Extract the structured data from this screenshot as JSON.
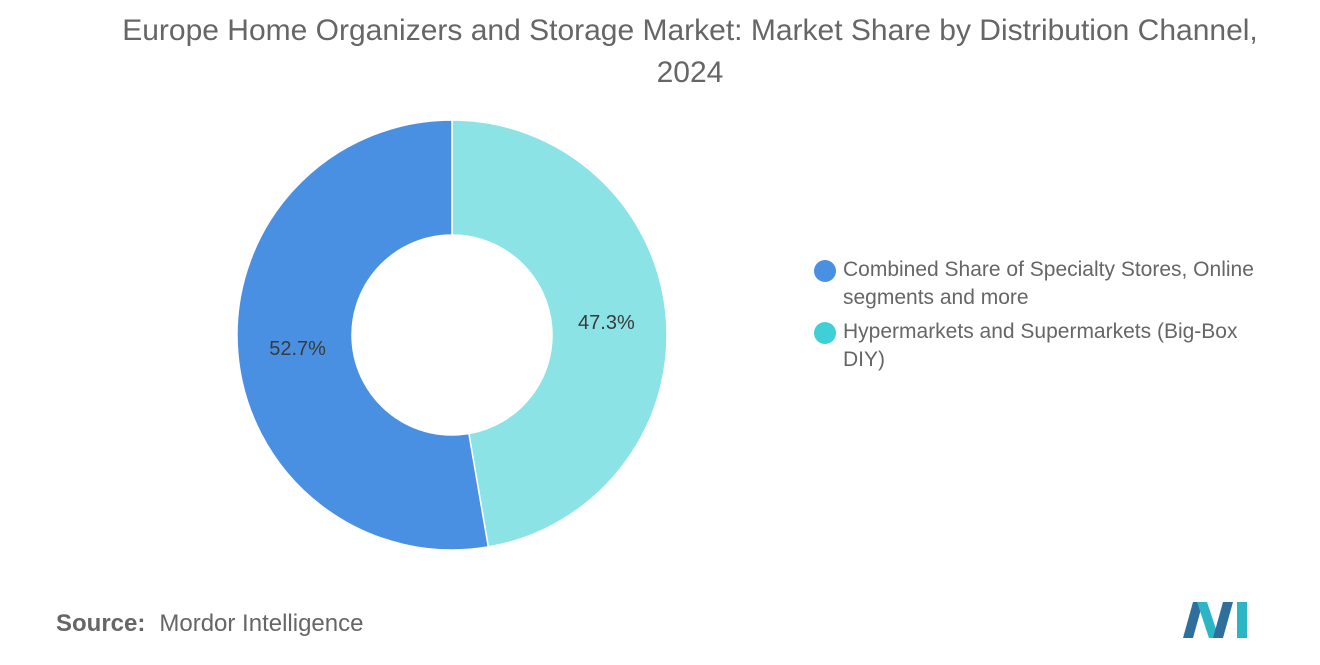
{
  "title": "Europe Home Organizers and Storage Market: Market Share by Distribution Channel, 2024",
  "chart_data": {
    "type": "pie",
    "donut": true,
    "title": "Europe Home Organizers and Storage Market: Market Share by Distribution Channel, 2024",
    "slices": [
      {
        "name": "Hypermarkets and Supermarkets (Big-Box DIY)",
        "value": 47.3,
        "label": "47.3%",
        "color": "#8BE3E6"
      },
      {
        "name": "Combined Share of Specialty Stores, Online segments and more",
        "value": 52.7,
        "label": "52.7%",
        "color": "#4A90E2"
      }
    ],
    "legend": {
      "position": "right",
      "entries": [
        {
          "label": "Combined Share of Specialty Stores, Online segments and more",
          "color": "#4A90E2"
        },
        {
          "label": "Hypermarkets and Supermarkets (Big-Box DIY)",
          "color": "#3FCFD6"
        }
      ]
    }
  },
  "source": {
    "prefix": "Source:",
    "text": "Mordor Intelligence"
  },
  "logo": {
    "icon": "mordor-intelligence-logo",
    "colors": [
      "#2E6F9E",
      "#2BB5C5"
    ]
  }
}
